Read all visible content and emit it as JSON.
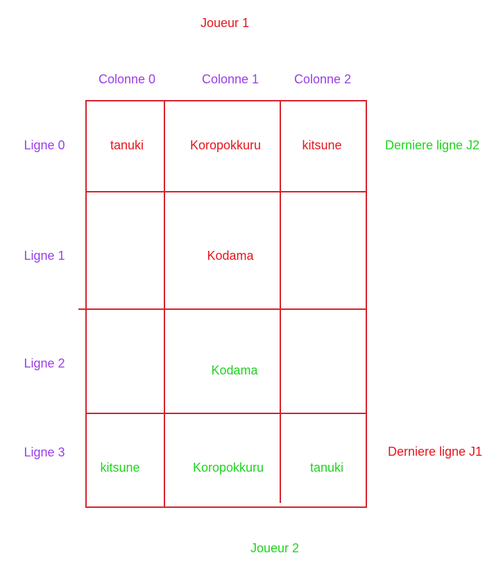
{
  "players": {
    "top": "Joueur 1",
    "bottom": "Joueur 2"
  },
  "columns": [
    "Colonne 0",
    "Colonne 1",
    "Colonne 2"
  ],
  "rows": [
    "Ligne 0",
    "Ligne 1",
    "Ligne 2",
    "Ligne 3"
  ],
  "side_labels": {
    "last_row_j2": "Derniere ligne J2",
    "last_row_j1": "Derniere ligne J1"
  },
  "pieces": {
    "r0c0": "tanuki",
    "r0c1": "Koropokkuru",
    "r0c2": "kitsune",
    "r1c1": "Kodama",
    "r2c1": "Kodama",
    "r3c0": "kitsune",
    "r3c1": "Koropokkuru",
    "r3c2": "tanuki"
  },
  "colors": {
    "player1": "#e8141c",
    "player2": "#1ed41e",
    "labels": "#9a3ee8",
    "grid": "#d6202a"
  }
}
